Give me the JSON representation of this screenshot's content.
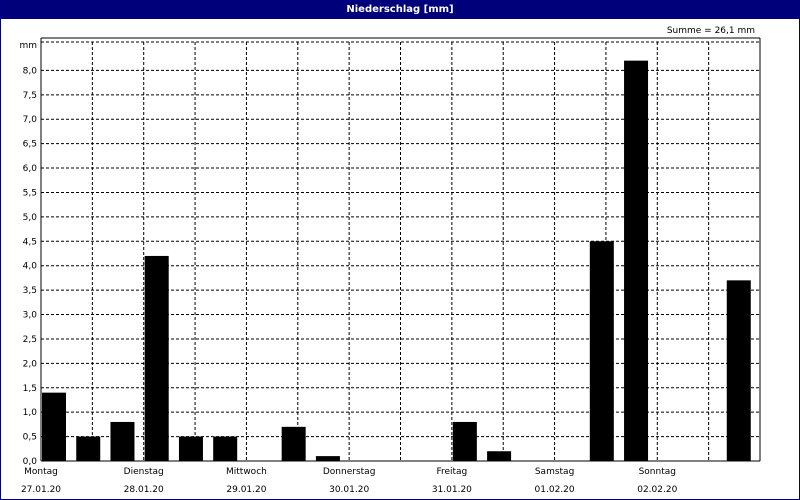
{
  "window": {
    "title": "Niederschlag [mm]"
  },
  "summary": "Summe = 26,1 mm",
  "chart_data": {
    "type": "bar",
    "title": "Niederschlag [mm]",
    "ylabel": "mm",
    "ylim": [
      0,
      8.5
    ],
    "yticks": [
      "0,0",
      "0,5",
      "1,0",
      "1,5",
      "2,0",
      "2,5",
      "3,0",
      "3,5",
      "4,0",
      "4,5",
      "5,0",
      "5,5",
      "6,0",
      "6,5",
      "7,0",
      "7,5",
      "8,0"
    ],
    "grid": true,
    "bars_per_day": 3,
    "days": [
      {
        "name": "Montag",
        "date": "27.01.20"
      },
      {
        "name": "Dienstag",
        "date": "28.01.20"
      },
      {
        "name": "Mittwoch",
        "date": "29.01.20"
      },
      {
        "name": "Donnerstag",
        "date": "30.01.20"
      },
      {
        "name": "Freitag",
        "date": "31.01.20"
      },
      {
        "name": "Samstag",
        "date": "01.02.20"
      },
      {
        "name": "Sonntag",
        "date": "02.02.20"
      }
    ],
    "values": [
      1.4,
      0.5,
      0.8,
      4.2,
      0.5,
      0.5,
      0,
      0.7,
      0.1,
      0,
      0,
      0,
      0.8,
      0.2,
      0,
      0,
      4.5,
      8.2,
      0,
      0,
      3.7
    ],
    "bar_color": "#000000"
  }
}
